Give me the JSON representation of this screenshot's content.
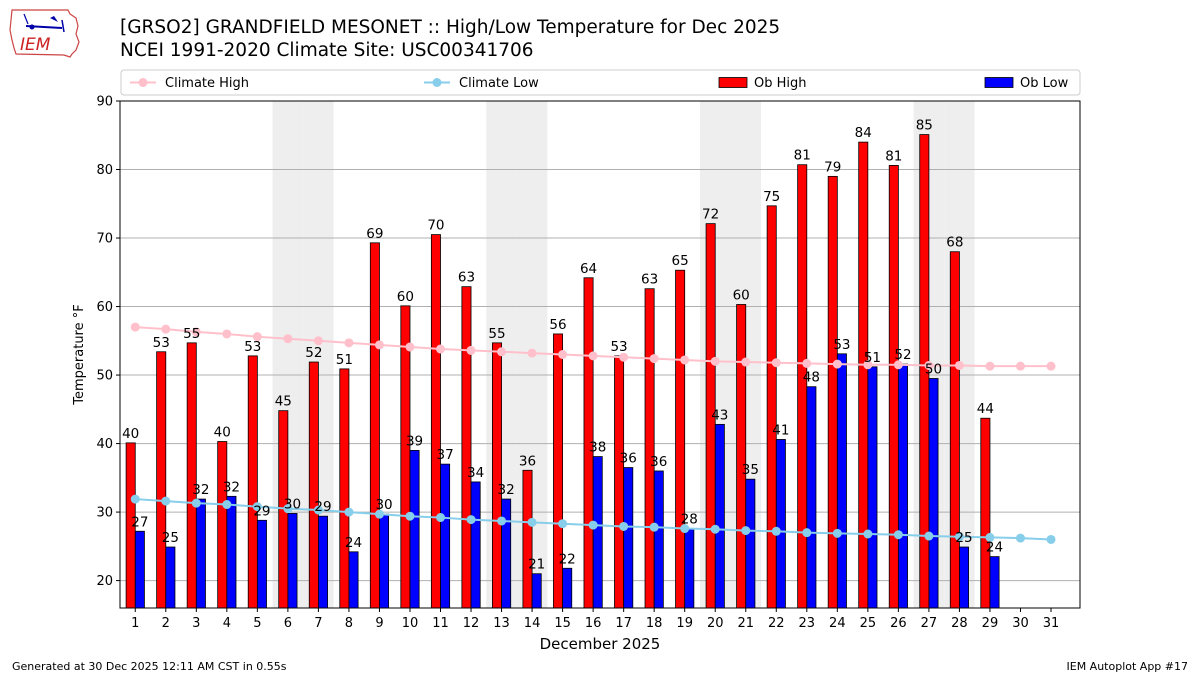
{
  "header": {
    "logo_text": "IEM",
    "title": "[GRSO2] GRANDFIELD MESONET :: High/Low Temperature for Dec 2025",
    "subtitle": "NCEI 1991-2020 Climate Site: USC00341706"
  },
  "footer": {
    "generated": "Generated at 30 Dec 2025 12:11 AM CST in 0.55s",
    "app": "IEM Autoplot App #17"
  },
  "chart_data": {
    "type": "bar",
    "xlabel": "December 2025",
    "ylabel": "Temperature °F",
    "ylim": [
      16,
      90
    ],
    "yticks": [
      20,
      30,
      40,
      50,
      60,
      70,
      80,
      90
    ],
    "grid": "horizontal",
    "legend_placement": "top",
    "categories": [
      "1",
      "2",
      "3",
      "4",
      "5",
      "6",
      "7",
      "8",
      "9",
      "10",
      "11",
      "12",
      "13",
      "14",
      "15",
      "16",
      "17",
      "18",
      "19",
      "20",
      "21",
      "22",
      "23",
      "24",
      "25",
      "26",
      "27",
      "28",
      "29",
      "30",
      "31"
    ],
    "weekend_days": [
      6,
      7,
      13,
      14,
      20,
      21,
      27,
      28
    ],
    "series": [
      {
        "name": "Climate High",
        "kind": "line",
        "color": "#ffc0cb",
        "values": [
          57.0,
          56.7,
          56.3,
          56.0,
          55.6,
          55.3,
          55.0,
          54.7,
          54.4,
          54.1,
          53.8,
          53.6,
          53.4,
          53.2,
          53.0,
          52.8,
          52.6,
          52.4,
          52.2,
          52.0,
          51.9,
          51.8,
          51.7,
          51.6,
          51.5,
          51.5,
          51.4,
          51.4,
          51.3,
          51.3,
          51.3
        ]
      },
      {
        "name": "Climate Low",
        "kind": "line",
        "color": "#87ceeb",
        "values": [
          31.9,
          31.6,
          31.3,
          31.1,
          30.8,
          30.5,
          30.3,
          30.0,
          29.7,
          29.4,
          29.2,
          28.9,
          28.7,
          28.5,
          28.3,
          28.1,
          27.9,
          27.8,
          27.6,
          27.5,
          27.3,
          27.2,
          27.0,
          26.9,
          26.8,
          26.7,
          26.5,
          26.4,
          26.3,
          26.2,
          26.0
        ]
      },
      {
        "name": "Ob High",
        "kind": "bar",
        "color": "#ff0000",
        "values": [
          40.1,
          53.4,
          54.7,
          40.3,
          52.8,
          44.8,
          51.9,
          50.9,
          69.3,
          60.1,
          70.5,
          62.9,
          54.7,
          36.1,
          56.0,
          64.2,
          52.8,
          62.6,
          65.3,
          72.1,
          60.3,
          74.7,
          80.7,
          79.0,
          84.0,
          80.6,
          85.1,
          68.0,
          43.7,
          null,
          null
        ],
        "labels": [
          "40",
          "53",
          "55",
          "40",
          "53",
          "45",
          "52",
          "51",
          "69",
          "60",
          "70",
          "63",
          "55",
          "36",
          "56",
          "64",
          "53",
          "63",
          "65",
          "72",
          "60",
          "75",
          "81",
          "79",
          "84",
          "81",
          "85",
          "68",
          "44",
          "",
          ""
        ]
      },
      {
        "name": "Ob Low",
        "kind": "bar",
        "color": "#0000ff",
        "values": [
          27.2,
          24.9,
          31.9,
          32.3,
          28.8,
          29.8,
          29.4,
          24.2,
          29.7,
          39.0,
          37.0,
          34.4,
          31.9,
          21.0,
          21.8,
          38.1,
          36.5,
          36.0,
          27.6,
          42.8,
          34.8,
          40.6,
          48.3,
          53.1,
          51.2,
          51.6,
          49.5,
          24.9,
          23.5,
          null,
          null
        ],
        "labels": [
          "27",
          "25",
          "32",
          "32",
          "29",
          "30",
          "29",
          "24",
          "30",
          "39",
          "37",
          "34",
          "32",
          "21",
          "22",
          "38",
          "36",
          "36",
          "28",
          "43",
          "35",
          "41",
          "48",
          "53",
          "51",
          "52",
          "50",
          "25",
          "24",
          "",
          ""
        ]
      }
    ]
  }
}
